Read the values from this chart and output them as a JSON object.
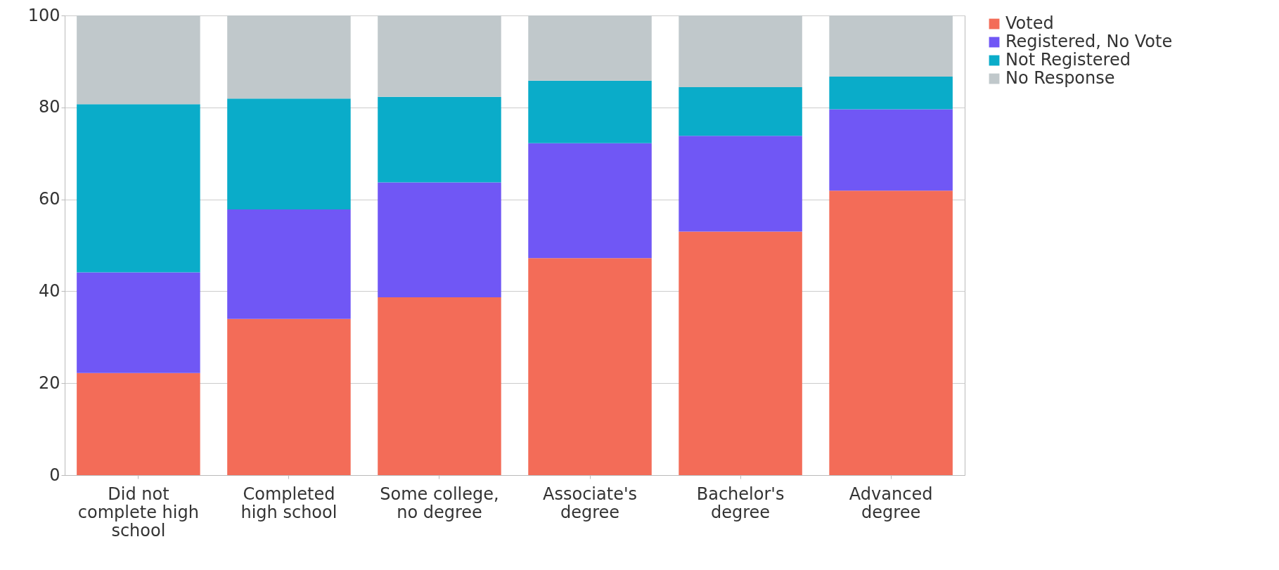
{
  "chart_data": {
    "type": "bar",
    "stacked": true,
    "categories": [
      "Did not complete high school",
      "Completed high school",
      "Some college, no degree",
      "Associate's degree",
      "Bachelor's degree",
      "Advanced degree"
    ],
    "series": [
      {
        "name": "Voted",
        "color": "#f36c58",
        "values": [
          22.2,
          34.0,
          38.7,
          47.2,
          53.0,
          61.9
        ]
      },
      {
        "name": "Registered, No Vote",
        "color": "#7057f5",
        "values": [
          21.9,
          23.8,
          25.0,
          25.0,
          20.8,
          17.7
        ]
      },
      {
        "name": "Not Registered",
        "color": "#0aacc9",
        "values": [
          36.6,
          24.1,
          18.6,
          13.6,
          10.6,
          7.1
        ]
      },
      {
        "name": "No Response",
        "color": "#c0c8cb",
        "values": [
          19.3,
          18.1,
          17.7,
          14.2,
          15.6,
          13.3
        ]
      }
    ],
    "ylim": [
      0,
      100
    ],
    "yticks": [
      0,
      20,
      40,
      60,
      80,
      100
    ],
    "grid": "y",
    "legend": "top right"
  }
}
